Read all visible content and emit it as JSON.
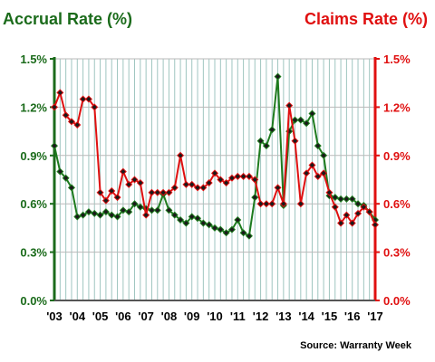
{
  "chart_data": {
    "type": "line",
    "title_left": "Accrual Rate (%)",
    "title_right": "Claims Rate (%)",
    "source": "Source: Warranty Week",
    "y_left": {
      "ticks": [
        "0.0%",
        "0.3%",
        "0.6%",
        "0.9%",
        "1.2%",
        "1.5%"
      ],
      "ylim": [
        0,
        1.5
      ],
      "color": "#1b6b1b"
    },
    "y_right": {
      "ticks": [
        "0.0%",
        "0.3%",
        "0.6%",
        "0.9%",
        "1.2%",
        "1.5%"
      ],
      "ylim": [
        0,
        1.5
      ],
      "color": "#e01010"
    },
    "x_ticks": [
      "'03",
      "'04",
      "'05",
      "'06",
      "'07",
      "'08",
      "'09",
      "'10",
      "'11",
      "'12",
      "'13",
      "'14",
      "'15",
      "'16",
      "'17"
    ],
    "xlim": [
      2003.0,
      2017.0
    ],
    "grid": true,
    "series": [
      {
        "name": "Accrual Rate",
        "axis": "left",
        "color": "#1e7b1e",
        "marker": "diamond",
        "x": [
          2003.0,
          2003.25,
          2003.5,
          2003.75,
          2004.0,
          2004.25,
          2004.5,
          2004.75,
          2005.0,
          2005.25,
          2005.5,
          2005.75,
          2006.0,
          2006.25,
          2006.5,
          2006.75,
          2007.0,
          2007.25,
          2007.5,
          2007.75,
          2008.0,
          2008.25,
          2008.5,
          2008.75,
          2009.0,
          2009.25,
          2009.5,
          2009.75,
          2010.0,
          2010.25,
          2010.5,
          2010.75,
          2011.0,
          2011.25,
          2011.5,
          2011.75,
          2012.0,
          2012.25,
          2012.5,
          2012.75,
          2013.0,
          2013.25,
          2013.5,
          2013.75,
          2014.0,
          2014.25,
          2014.5,
          2014.75,
          2015.0,
          2015.25,
          2015.5,
          2015.75,
          2016.0,
          2016.25,
          2016.5,
          2016.75,
          2017.0
        ],
        "values": [
          0.96,
          0.8,
          0.76,
          0.7,
          0.52,
          0.53,
          0.55,
          0.54,
          0.53,
          0.55,
          0.53,
          0.52,
          0.56,
          0.55,
          0.6,
          0.58,
          0.57,
          0.56,
          0.56,
          0.66,
          0.56,
          0.53,
          0.5,
          0.48,
          0.52,
          0.51,
          0.48,
          0.47,
          0.45,
          0.44,
          0.42,
          0.44,
          0.5,
          0.42,
          0.4,
          0.64,
          0.99,
          0.96,
          1.06,
          1.39,
          0.59,
          1.05,
          1.12,
          1.12,
          1.1,
          1.16,
          0.96,
          0.9,
          0.65,
          0.64,
          0.63,
          0.63,
          0.63,
          0.6,
          0.59,
          0.55,
          0.5
        ]
      },
      {
        "name": "Claims Rate",
        "axis": "right",
        "color": "#e01010",
        "marker": "diamond",
        "x": [
          2003.0,
          2003.25,
          2003.5,
          2003.75,
          2004.0,
          2004.25,
          2004.5,
          2004.75,
          2005.0,
          2005.25,
          2005.5,
          2005.75,
          2006.0,
          2006.25,
          2006.5,
          2006.75,
          2007.0,
          2007.25,
          2007.5,
          2007.75,
          2008.0,
          2008.25,
          2008.5,
          2008.75,
          2009.0,
          2009.25,
          2009.5,
          2009.75,
          2010.0,
          2010.25,
          2010.5,
          2010.75,
          2011.0,
          2011.25,
          2011.5,
          2011.75,
          2012.0,
          2012.25,
          2012.5,
          2012.75,
          2013.0,
          2013.25,
          2013.5,
          2013.75,
          2014.0,
          2014.25,
          2014.5,
          2014.75,
          2015.0,
          2015.25,
          2015.5,
          2015.75,
          2016.0,
          2016.25,
          2016.5,
          2016.75,
          2017.0
        ],
        "values": [
          1.2,
          1.29,
          1.15,
          1.11,
          1.09,
          1.25,
          1.25,
          1.2,
          0.67,
          0.62,
          0.68,
          0.64,
          0.8,
          0.72,
          0.75,
          0.73,
          0.53,
          0.67,
          0.67,
          0.67,
          0.67,
          0.7,
          0.9,
          0.72,
          0.72,
          0.7,
          0.7,
          0.73,
          0.79,
          0.75,
          0.73,
          0.76,
          0.77,
          0.77,
          0.77,
          0.75,
          0.6,
          0.6,
          0.6,
          0.7,
          0.6,
          1.21,
          0.99,
          0.6,
          0.79,
          0.84,
          0.77,
          0.79,
          0.67,
          0.58,
          0.48,
          0.53,
          0.48,
          0.54,
          0.58,
          0.55,
          0.47
        ]
      }
    ]
  }
}
